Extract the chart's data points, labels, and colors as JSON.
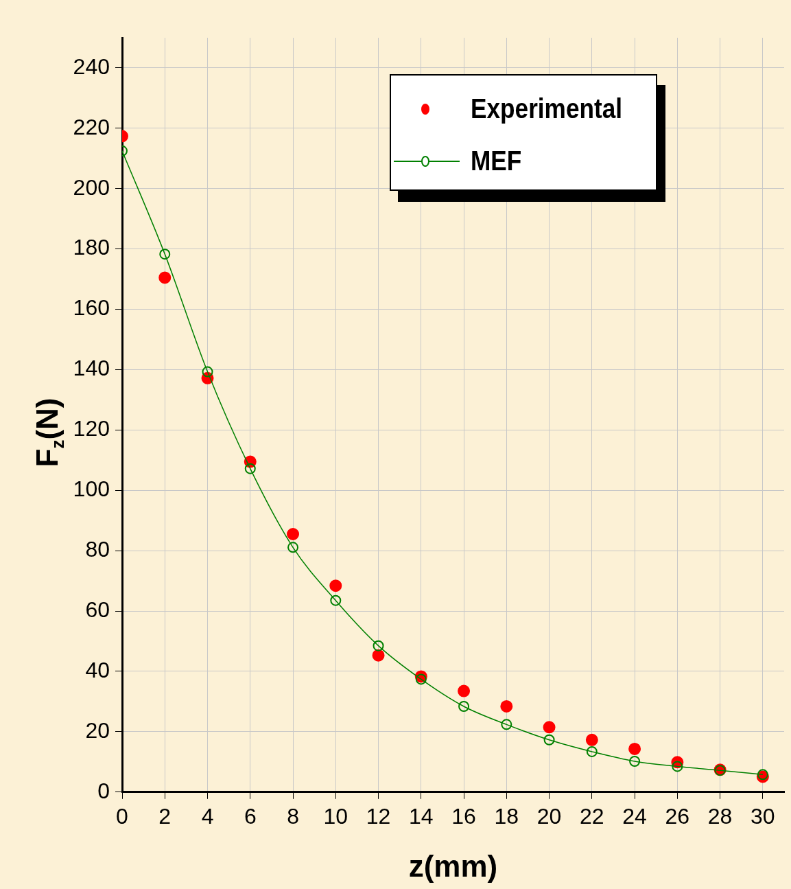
{
  "chart_data": {
    "type": "scatter",
    "xlabel": "z(mm)",
    "ylabel": "F$_{z}$(N)",
    "xlim": [
      0,
      31
    ],
    "xticks": [
      0,
      2,
      4,
      6,
      8,
      10,
      12,
      14,
      16,
      18,
      20,
      22,
      24,
      26,
      28,
      30
    ],
    "ylim": [
      0,
      250
    ],
    "yticks": [
      0,
      20,
      40,
      60,
      80,
      100,
      120,
      140,
      160,
      180,
      200,
      220,
      240
    ],
    "grid": true,
    "legend": "top right",
    "x": [
      0,
      2,
      4,
      6,
      8,
      10,
      12,
      14,
      16,
      18,
      20,
      22,
      24,
      26,
      28,
      30
    ],
    "series": [
      {
        "name": "Experimental",
        "color": "#ff0000",
        "marker": "circle",
        "values": [
          217.4,
          170.5,
          137.2,
          109.5,
          85.5,
          68.4,
          45.3,
          38.3,
          33.5,
          28.4,
          21.5,
          17.3,
          14.3,
          9.9,
          7.4,
          5.1
        ]
      },
      {
        "name": "MEF",
        "type": "line",
        "color": "#008000",
        "marker": "circle",
        "line_style": "solid",
        "values": [
          212.5,
          178.3,
          139.3,
          107.2,
          81.1,
          63.5,
          48.5,
          37.4,
          28.4,
          22.4,
          17.3,
          13.4,
          10.2,
          8.5,
          7.2,
          5.8
        ]
      }
    ]
  }
}
